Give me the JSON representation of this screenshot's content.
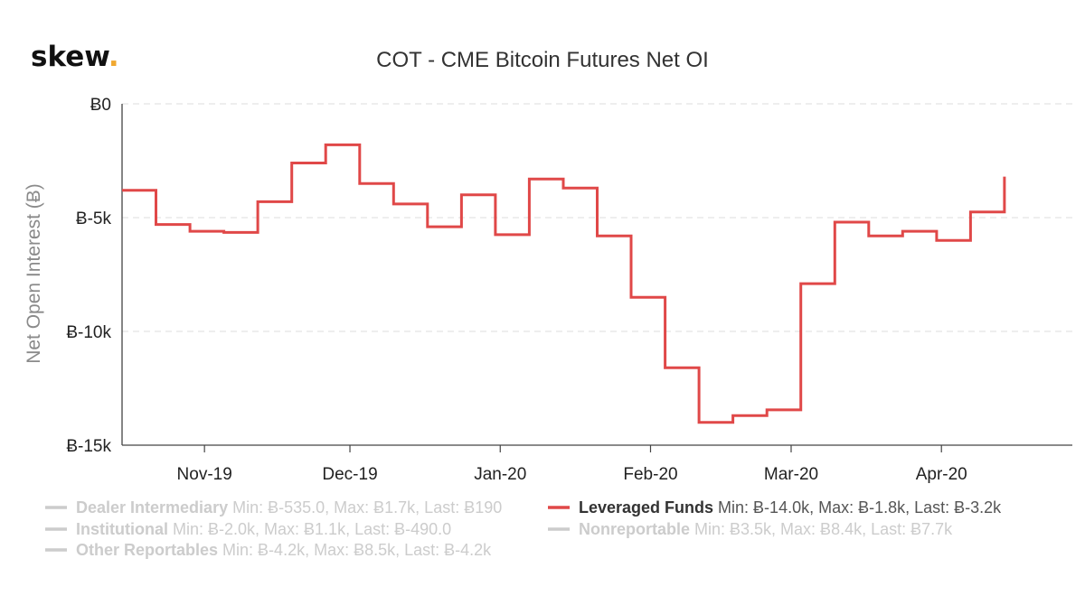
{
  "logo": {
    "text": "skew",
    "dot": "."
  },
  "chart_data": {
    "type": "line",
    "step": true,
    "title": "COT - CME Bitcoin Futures Net OI",
    "ylabel": "Net Open Interest (Ƀ)",
    "xlabel": "",
    "ylim": [
      -15000,
      0
    ],
    "yticks": [
      {
        "value": 0,
        "label": "Ƀ0"
      },
      {
        "value": -5000,
        "label": "Ƀ-5k"
      },
      {
        "value": -10000,
        "label": "Ƀ-10k"
      },
      {
        "value": -15000,
        "label": "Ƀ-15k"
      }
    ],
    "xlim": [
      "2019-10-15",
      "2020-04-28"
    ],
    "xticks": [
      {
        "date": "2019-11-01",
        "label": "Nov-19"
      },
      {
        "date": "2019-12-01",
        "label": "Dec-19"
      },
      {
        "date": "2020-01-01",
        "label": "Jan-20"
      },
      {
        "date": "2020-02-01",
        "label": "Feb-20"
      },
      {
        "date": "2020-03-01",
        "label": "Mar-20"
      },
      {
        "date": "2020-04-01",
        "label": "Apr-20"
      }
    ],
    "grid": true,
    "legend_position": "bottom",
    "series": [
      {
        "name": "Leveraged Funds",
        "color": "#e04848",
        "visible": true,
        "stats": "Min: Ƀ-14.0k, Max: Ƀ-1.8k, Last: Ƀ-3.2k",
        "points": [
          {
            "x": "2019-10-15",
            "y": -3800
          },
          {
            "x": "2019-10-22",
            "y": -5300
          },
          {
            "x": "2019-10-29",
            "y": -5600
          },
          {
            "x": "2019-11-05",
            "y": -5650
          },
          {
            "x": "2019-11-12",
            "y": -4300
          },
          {
            "x": "2019-11-19",
            "y": -2600
          },
          {
            "x": "2019-11-26",
            "y": -1800
          },
          {
            "x": "2019-12-03",
            "y": -3500
          },
          {
            "x": "2019-12-10",
            "y": -4400
          },
          {
            "x": "2019-12-17",
            "y": -5400
          },
          {
            "x": "2019-12-24",
            "y": -4000
          },
          {
            "x": "2019-12-31",
            "y": -5750
          },
          {
            "x": "2020-01-07",
            "y": -3300
          },
          {
            "x": "2020-01-14",
            "y": -3700
          },
          {
            "x": "2020-01-21",
            "y": -5800
          },
          {
            "x": "2020-01-28",
            "y": -8500
          },
          {
            "x": "2020-02-04",
            "y": -11600
          },
          {
            "x": "2020-02-11",
            "y": -14000
          },
          {
            "x": "2020-02-18",
            "y": -13700
          },
          {
            "x": "2020-02-25",
            "y": -13450
          },
          {
            "x": "2020-03-03",
            "y": -7900
          },
          {
            "x": "2020-03-10",
            "y": -5200
          },
          {
            "x": "2020-03-17",
            "y": -5800
          },
          {
            "x": "2020-03-24",
            "y": -5600
          },
          {
            "x": "2020-03-31",
            "y": -6000
          },
          {
            "x": "2020-04-07",
            "y": -4750
          },
          {
            "x": "2020-04-14",
            "y": -3200
          }
        ]
      }
    ],
    "legend": [
      {
        "name": "Dealer Intermediary",
        "stats": "Min: Ƀ-535.0, Max: Ƀ1.7k, Last: Ƀ190",
        "active": false,
        "color": "#cccccc"
      },
      {
        "name": "Leveraged Funds",
        "stats": "Min: Ƀ-14.0k, Max: Ƀ-1.8k, Last: Ƀ-3.2k",
        "active": true,
        "color": "#e04848"
      },
      {
        "name": "Institutional",
        "stats": "Min: Ƀ-2.0k, Max: Ƀ1.1k, Last: Ƀ-490.0",
        "active": false,
        "color": "#cccccc"
      },
      {
        "name": "Nonreportable",
        "stats": "Min: Ƀ3.5k, Max: Ƀ8.4k, Last: Ƀ7.7k",
        "active": false,
        "color": "#cccccc"
      },
      {
        "name": "Other Reportables",
        "stats": "Min: Ƀ-4.2k, Max: Ƀ8.5k, Last: Ƀ-4.2k",
        "active": false,
        "color": "#cccccc"
      }
    ]
  }
}
